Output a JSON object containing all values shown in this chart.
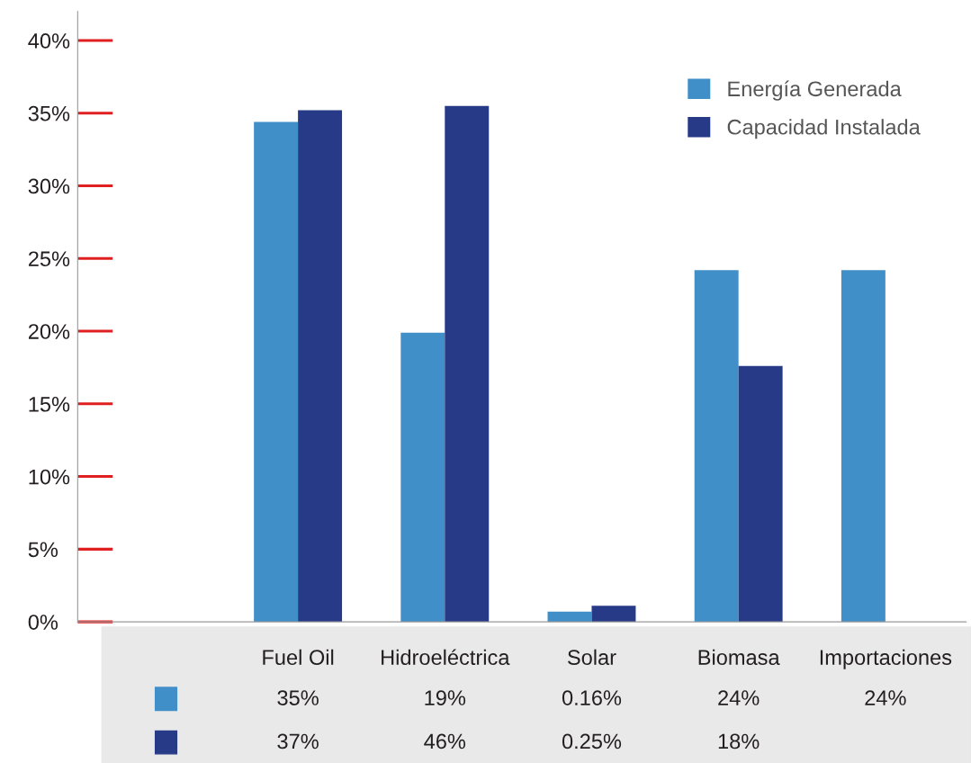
{
  "chart_data": {
    "type": "bar",
    "categories": [
      "Fuel Oil",
      "Hidroeléctrica",
      "Solar",
      "Biomasa",
      "Importaciones"
    ],
    "series": [
      {
        "name": "Energía Generada",
        "color": "#418fc8",
        "values": [
          34.4,
          19.9,
          0.7,
          24.2,
          24.2
        ]
      },
      {
        "name": "Capacidad Instalada",
        "color": "#273a87",
        "values": [
          35.2,
          35.5,
          1.1,
          17.6,
          null
        ]
      }
    ],
    "annotations": [
      "35%",
      "19%",
      "0.16%",
      "24%",
      "24%",
      "37%",
      "46%",
      "0.25%",
      "18%"
    ],
    "ylim": [
      0,
      42
    ],
    "yticks": [
      {
        "value": 0,
        "label": "0%"
      },
      {
        "value": 5,
        "label": "5%"
      },
      {
        "value": 10,
        "label": "10%"
      },
      {
        "value": 15,
        "label": "15%"
      },
      {
        "value": 20,
        "label": "20%"
      },
      {
        "value": 25,
        "label": "25%"
      },
      {
        "value": 30,
        "label": "30%"
      },
      {
        "value": 35,
        "label": "35%"
      },
      {
        "value": 40,
        "label": "40%"
      }
    ],
    "grid": false,
    "legend": "top right"
  }
}
